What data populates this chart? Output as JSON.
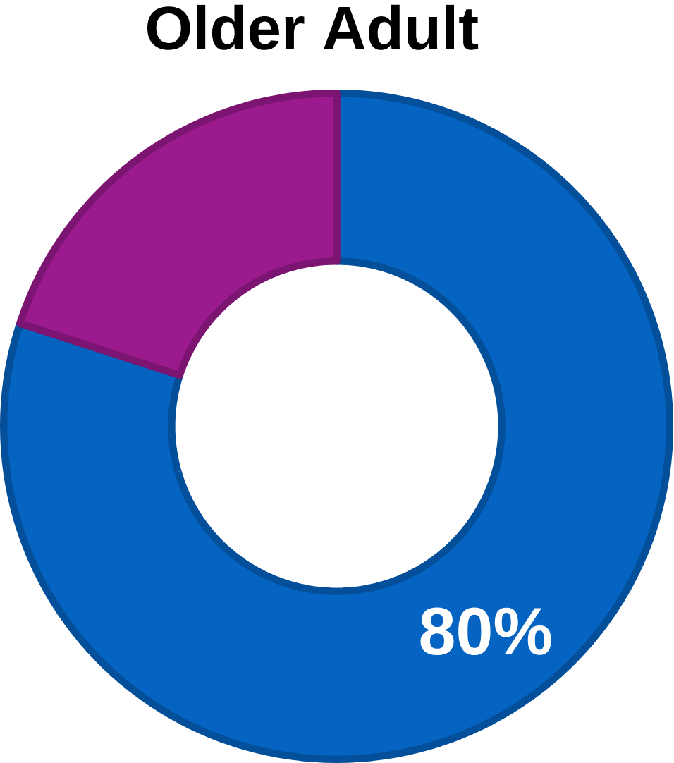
{
  "chart_data": {
    "type": "donut",
    "title": "Older Adult",
    "categories": [
      null,
      null
    ],
    "values": [
      80,
      20
    ],
    "colors": [
      "#0563c1",
      "#9b1b8e"
    ],
    "value_labels": [
      "80%",
      null
    ]
  }
}
